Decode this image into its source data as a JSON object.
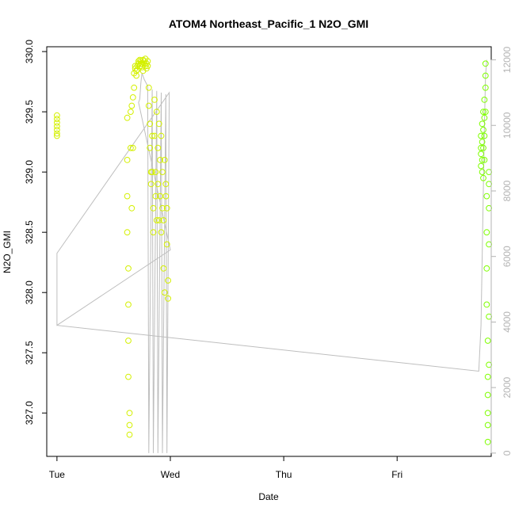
{
  "chart_data": {
    "type": "scatter",
    "title": "ATOM4 Northeast_Pacific_1 N2O_GMI",
    "xlabel": "Date",
    "ylabel": "N2O_GMI",
    "x_ticks": [
      "Tue",
      "Wed",
      "Thu",
      "Fri"
    ],
    "y_ticks": [
      "327.0",
      "327.5",
      "328.0",
      "328.5",
      "329.0",
      "329.5",
      "330.0"
    ],
    "y2_ticks": [
      "0",
      "2000",
      "4000",
      "6000",
      "8000",
      "10000",
      "12000"
    ],
    "xlim_days": [
      -0.09,
      3.83
    ],
    "ylim": [
      326.64,
      330.04
    ],
    "y2lim": [
      -100,
      12400
    ],
    "colors": {
      "yellow_green": "#d4f000",
      "lime_green": "#7fff00",
      "altitude_line": "#bebebe",
      "axis": "#000000",
      "right_axis": "#b3b3b3"
    },
    "n2o_series": [
      {
        "x": [
          0.0,
          0.0,
          0.0,
          0.0,
          0.0,
          0.0,
          0.0
        ],
        "y": [
          329.32,
          329.35,
          329.38,
          329.41,
          329.44,
          329.47,
          329.3
        ],
        "color": "#d4f000"
      },
      {
        "x": [
          0.62,
          0.62,
          0.62,
          0.62,
          0.63,
          0.63,
          0.63,
          0.63,
          0.64,
          0.64,
          0.64,
          0.65,
          0.65,
          0.66,
          0.66,
          0.67,
          0.67,
          0.68,
          0.68,
          0.69,
          0.69,
          0.7,
          0.7,
          0.71,
          0.71,
          0.72,
          0.72,
          0.73,
          0.73,
          0.74,
          0.74,
          0.75,
          0.75,
          0.76,
          0.76,
          0.77,
          0.77,
          0.78,
          0.78,
          0.79,
          0.79,
          0.8,
          0.8,
          0.81,
          0.81,
          0.82,
          0.82,
          0.83,
          0.83,
          0.84,
          0.84,
          0.85,
          0.85,
          0.86,
          0.86,
          0.87,
          0.87,
          0.88,
          0.88,
          0.89,
          0.89,
          0.9,
          0.9,
          0.91,
          0.91,
          0.92,
          0.92,
          0.93,
          0.93,
          0.94,
          0.94,
          0.95,
          0.95,
          0.96,
          0.96,
          0.97,
          0.97,
          0.98,
          0.98
        ],
        "y": [
          329.45,
          329.1,
          328.8,
          328.5,
          328.2,
          327.9,
          327.6,
          327.3,
          327.0,
          326.82,
          326.9,
          329.5,
          329.2,
          328.7,
          329.55,
          329.62,
          329.2,
          329.7,
          329.82,
          329.86,
          329.88,
          329.84,
          329.8,
          329.88,
          329.85,
          329.9,
          329.92,
          329.88,
          329.93,
          329.9,
          329.92,
          329.87,
          329.9,
          329.84,
          329.93,
          329.9,
          329.92,
          329.88,
          329.94,
          329.86,
          329.9,
          329.92,
          329.88,
          329.7,
          329.55,
          329.4,
          329.2,
          329.0,
          328.9,
          329.3,
          329.0,
          328.7,
          328.5,
          329.6,
          329.3,
          329.0,
          328.8,
          328.6,
          329.5,
          329.2,
          328.9,
          328.6,
          329.4,
          329.1,
          328.8,
          328.5,
          329.3,
          329.0,
          328.7,
          328.6,
          328.2,
          328.0,
          329.1,
          328.9,
          328.8,
          328.7,
          328.4,
          328.1,
          327.95
        ],
        "color": "#d4f000"
      },
      {
        "x": [
          3.74,
          3.74,
          3.74,
          3.74,
          3.75,
          3.75,
          3.75,
          3.75,
          3.76,
          3.76,
          3.76,
          3.76,
          3.77,
          3.77,
          3.77,
          3.77,
          3.78,
          3.78,
          3.78,
          3.78,
          3.79,
          3.79,
          3.79,
          3.79,
          3.8,
          3.8,
          3.8,
          3.8,
          3.8,
          3.8,
          3.81,
          3.81,
          3.81,
          3.81,
          3.81,
          3.81
        ],
        "y": [
          329.2,
          329.3,
          329.15,
          329.05,
          329.4,
          329.25,
          329.1,
          329.0,
          329.5,
          329.35,
          329.2,
          328.95,
          329.6,
          329.45,
          329.3,
          329.1,
          329.8,
          329.9,
          329.7,
          329.5,
          328.8,
          328.5,
          328.2,
          327.9,
          327.6,
          327.3,
          327.15,
          327.0,
          326.9,
          326.76,
          329.0,
          328.9,
          328.7,
          328.4,
          327.8,
          327.4
        ],
        "color": "#7fff00"
      }
    ],
    "altitude_line": {
      "x": [
        0.0,
        0.0,
        1.0,
        0.72,
        0.73,
        0.74,
        0.75,
        0.76,
        0.77,
        0.8,
        0.81,
        0.84,
        0.85,
        0.88,
        0.89,
        0.92,
        0.93,
        0.96,
        0.97,
        0.99,
        0.0,
        0.0,
        3.72,
        3.74,
        3.75,
        3.76,
        3.77,
        3.78,
        3.79
      ],
      "y": [
        6100,
        3900,
        6200,
        10700,
        10800,
        11300,
        11600,
        11500,
        11400,
        11200,
        0,
        11100,
        0,
        11050,
        0,
        11000,
        0,
        10950,
        0,
        11000,
        6100,
        3900,
        2500,
        3900,
        6000,
        8000,
        10000,
        11500,
        12000
      ]
    }
  }
}
